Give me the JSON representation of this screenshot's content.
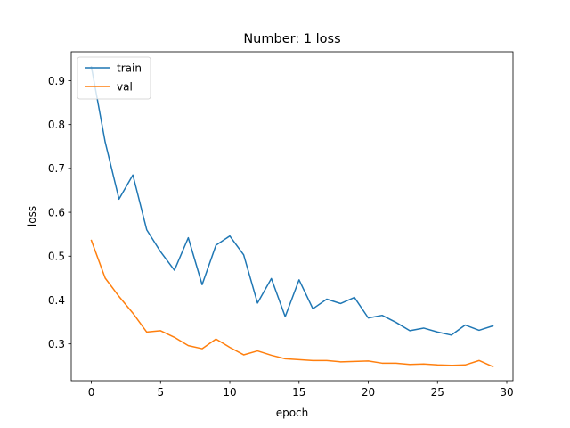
{
  "chart_data": {
    "type": "line",
    "title": "Number: 1 loss",
    "xlabel": "epoch",
    "ylabel": "loss",
    "xlim": [
      -1.45,
      30.45
    ],
    "ylim": [
      0.216,
      0.966
    ],
    "xticks": [
      0,
      5,
      10,
      15,
      20,
      25,
      30
    ],
    "yticks": [
      0.3,
      0.4,
      0.5,
      0.6,
      0.7,
      0.8,
      0.9
    ],
    "grid": false,
    "legend_position": "upper left",
    "x": [
      0,
      1,
      2,
      3,
      4,
      5,
      6,
      7,
      8,
      9,
      10,
      11,
      12,
      13,
      14,
      15,
      16,
      17,
      18,
      19,
      20,
      21,
      22,
      23,
      24,
      25,
      26,
      27,
      28,
      29
    ],
    "series": [
      {
        "name": "train",
        "color": "#1f77b4",
        "values": [
          0.932,
          0.76,
          0.63,
          0.685,
          0.56,
          0.51,
          0.468,
          0.542,
          0.435,
          0.525,
          0.546,
          0.503,
          0.393,
          0.449,
          0.362,
          0.446,
          0.38,
          0.402,
          0.392,
          0.406,
          0.359,
          0.365,
          0.349,
          0.33,
          0.336,
          0.327,
          0.32,
          0.343,
          0.331,
          0.341
        ]
      },
      {
        "name": "val",
        "color": "#ff7f0e",
        "values": [
          0.536,
          0.45,
          0.408,
          0.37,
          0.327,
          0.33,
          0.315,
          0.296,
          0.289,
          0.311,
          0.292,
          0.275,
          0.284,
          0.274,
          0.266,
          0.264,
          0.262,
          0.262,
          0.259,
          0.26,
          0.261,
          0.256,
          0.256,
          0.253,
          0.254,
          0.252,
          0.251,
          0.252,
          0.262,
          0.248
        ]
      }
    ]
  }
}
